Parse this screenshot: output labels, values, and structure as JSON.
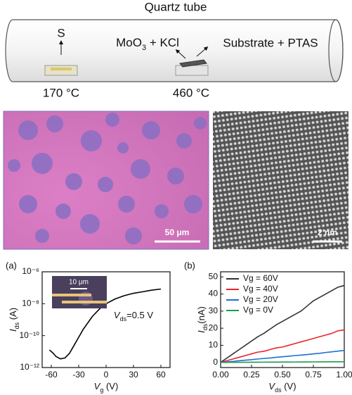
{
  "schematic": {
    "title": "Quartz tube",
    "source": "S",
    "precursor": {
      "main": "MoO",
      "sub": "3",
      "rest": " + KCl"
    },
    "target": "Substrate + PTAS",
    "temp_source": "170 °C",
    "temp_growth": "460 °C"
  },
  "micrographs": {
    "optical_scale": "50 μm",
    "tem_scale": "2 nm"
  },
  "chart_data": [
    {
      "type": "line",
      "panel": "(a)",
      "xlabel": {
        "main": "V",
        "sub": "g",
        "unit": " (V)"
      },
      "ylabel": {
        "main": "I",
        "sub": "ds",
        "unit": " (A)"
      },
      "annotation": {
        "main": "V",
        "sub": "ds",
        "text": "=0.5 V"
      },
      "inset_scale": "10 μm",
      "log_y": true,
      "x": [
        -62,
        -58,
        -55,
        -50,
        -45,
        -40,
        -35,
        -30,
        -25,
        -20,
        -15,
        -10,
        -5,
        0,
        10,
        20,
        30,
        40,
        50,
        60
      ],
      "values": [
        1.26e-11,
        7.9e-12,
        5e-12,
        3.5e-12,
        4e-12,
        7.9e-12,
        2.5e-11,
        7.9e-11,
        2.5e-10,
        6.3e-10,
        1.6e-09,
        3.2e-09,
        6.3e-09,
        1e-08,
        2e-08,
        3.2e-08,
        4.5e-08,
        5.6e-08,
        7.1e-08,
        8.3e-08
      ],
      "color": "#000000",
      "xlim": [
        -70,
        70
      ],
      "xticks": [
        -60,
        -30,
        0,
        30,
        60
      ],
      "ylim": [
        1e-12,
        1e-06
      ],
      "yticks": [
        {
          "value": 1e-12,
          "label": "10⁻¹²"
        },
        {
          "value": 1e-10,
          "label": "10⁻¹⁰"
        },
        {
          "value": 1e-08,
          "label": "10⁻⁸"
        },
        {
          "value": 1e-06,
          "label": "10⁻⁶"
        }
      ]
    },
    {
      "type": "line",
      "panel": "(b)",
      "xlabel": {
        "main": "V",
        "sub": "ds",
        "unit": " (V)"
      },
      "ylabel": {
        "main": "I",
        "sub": "ds",
        "unit": "(nA)"
      },
      "legend": "upper left",
      "x": [
        0,
        0.05,
        0.1,
        0.15,
        0.2,
        0.25,
        0.3,
        0.35,
        0.4,
        0.45,
        0.5,
        0.55,
        0.6,
        0.65,
        0.7,
        0.75,
        0.8,
        0.85,
        0.9,
        0.95,
        1.0
      ],
      "series": [
        {
          "name": "Vg = 60V",
          "color": "#333333",
          "values": [
            0,
            2.5,
            5,
            7.5,
            10,
            12.5,
            15,
            17,
            19.5,
            22,
            24,
            26,
            28,
            30,
            33,
            36,
            38,
            40,
            42,
            44,
            45
          ]
        },
        {
          "name": "Vg = 40V",
          "color": "#e8262b",
          "values": [
            0,
            1,
            2,
            3,
            4,
            5,
            6,
            6.5,
            7.5,
            8.5,
            9,
            10,
            11,
            12,
            13,
            14,
            15,
            16,
            17,
            18.5,
            19
          ]
        },
        {
          "name": "Vg = 20V",
          "color": "#1f6fd1",
          "values": [
            0,
            0.3,
            0.6,
            1,
            1.3,
            1.6,
            2,
            2.3,
            2.6,
            3,
            3.3,
            3.6,
            4,
            4.3,
            4.6,
            5,
            5.3,
            5.8,
            6.2,
            6.6,
            7
          ]
        },
        {
          "name": "Vg = 0V",
          "color": "#1e9a4a",
          "values": [
            0,
            0.02,
            0.04,
            0.06,
            0.08,
            0.1,
            0.12,
            0.14,
            0.16,
            0.18,
            0.2,
            0.22,
            0.24,
            0.26,
            0.28,
            0.3,
            0.32,
            0.34,
            0.36,
            0.38,
            0.4
          ]
        }
      ],
      "xlim": [
        0,
        1
      ],
      "xticks": [
        {
          "value": 0,
          "label": "0.00"
        },
        {
          "value": 0.25,
          "label": "0.25"
        },
        {
          "value": 0.5,
          "label": "0.50"
        },
        {
          "value": 0.75,
          "label": "0.75"
        },
        {
          "value": 1,
          "label": "1.00"
        }
      ],
      "ylim": [
        -3,
        53
      ],
      "yticks": [
        0,
        10,
        20,
        30,
        40,
        50
      ]
    }
  ]
}
